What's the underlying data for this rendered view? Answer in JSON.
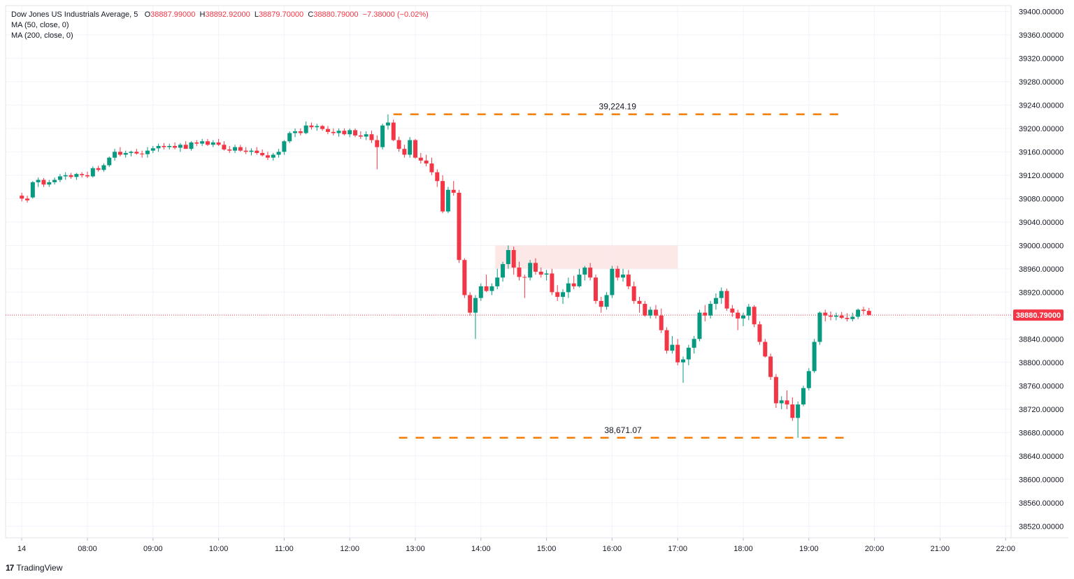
{
  "legend": {
    "instrument": "Dow Jones US Industrials Average, 5",
    "o_label": "O",
    "o_value": "38887.99000",
    "h_label": "H",
    "h_value": "38892.92000",
    "l_label": "L",
    "l_value": "38879.70000",
    "c_label": "C",
    "c_value": "38880.79000",
    "change": "−7.38000 (−0.02%)",
    "ma1": "MA (50, close, 0)",
    "ma2": "MA (200, close, 0)"
  },
  "brand": {
    "logo": "17",
    "name": "TradingView"
  },
  "colors": {
    "up": "#089981",
    "down": "#f23645",
    "level": "#f57c00",
    "zone": "#fde4e4",
    "grid": "#f0f3fa",
    "last_price": "#f23645"
  },
  "chart_data": {
    "type": "candlestick",
    "interval": "5 minutes",
    "x_axis_ticks": [
      "14",
      "08:00",
      "09:00",
      "10:00",
      "11:00",
      "12:00",
      "13:00",
      "14:00",
      "15:00",
      "16:00",
      "17:00",
      "18:00",
      "19:00",
      "20:00",
      "21:00",
      "22:00"
    ],
    "y_axis_ticks": [
      "39400.00000",
      "39360.00000",
      "39320.00000",
      "39280.00000",
      "39240.00000",
      "39200.00000",
      "39160.00000",
      "39120.00000",
      "39080.00000",
      "39040.00000",
      "39000.00000",
      "38960.00000",
      "38920.00000",
      "38880.79000",
      "38840.00000",
      "38800.00000",
      "38760.00000",
      "38720.00000",
      "38680.00000",
      "38640.00000",
      "38600.00000",
      "38560.00000",
      "38520.00000"
    ],
    "ylim": [
      38500,
      39410
    ],
    "last_price": 38880.79,
    "last_price_label": "38880.79000",
    "annotations": [
      {
        "label": "39,224.19",
        "value": 39224.19,
        "start": "12:40",
        "end": "19:30"
      },
      {
        "label": "38,671.07",
        "value": 38671.07,
        "start": "12:45",
        "end": "19:35"
      }
    ],
    "zone": {
      "start": "14:15",
      "end": "17:00",
      "low": 38960,
      "high": 39000
    },
    "candles": [
      [
        "07:00",
        39085,
        39090,
        39075,
        39080
      ],
      [
        "07:05",
        39080,
        39085,
        39073,
        39077
      ],
      [
        "07:10",
        39082,
        39110,
        39080,
        39108
      ],
      [
        "07:15",
        39108,
        39116,
        39100,
        39112
      ],
      [
        "07:20",
        39112,
        39115,
        39100,
        39104
      ],
      [
        "07:25",
        39104,
        39112,
        39100,
        39108
      ],
      [
        "07:30",
        39108,
        39116,
        39104,
        39112
      ],
      [
        "07:35",
        39112,
        39122,
        39108,
        39118
      ],
      [
        "07:40",
        39118,
        39125,
        39112,
        39120
      ],
      [
        "07:45",
        39120,
        39124,
        39114,
        39117
      ],
      [
        "07:50",
        39117,
        39124,
        39112,
        39122
      ],
      [
        "07:55",
        39122,
        39125,
        39116,
        39120
      ],
      [
        "08:00",
        39120,
        39126,
        39115,
        39118
      ],
      [
        "08:05",
        39118,
        39135,
        39116,
        39132
      ],
      [
        "08:10",
        39132,
        39136,
        39126,
        39129
      ],
      [
        "08:15",
        39129,
        39140,
        39126,
        39137
      ],
      [
        "08:20",
        39137,
        39152,
        39134,
        39150
      ],
      [
        "08:25",
        39150,
        39165,
        39145,
        39160
      ],
      [
        "08:30",
        39160,
        39168,
        39152,
        39155
      ],
      [
        "08:35",
        39155,
        39162,
        39150,
        39158
      ],
      [
        "08:40",
        39158,
        39162,
        39152,
        39160
      ],
      [
        "08:45",
        39160,
        39165,
        39155,
        39157
      ],
      [
        "08:50",
        39157,
        39162,
        39150,
        39156
      ],
      [
        "08:55",
        39156,
        39168,
        39150,
        39162
      ],
      [
        "09:00",
        39162,
        39170,
        39158,
        39166
      ],
      [
        "09:05",
        39166,
        39174,
        39160,
        39170
      ],
      [
        "09:10",
        39170,
        39175,
        39164,
        39168
      ],
      [
        "09:15",
        39168,
        39174,
        39164,
        39170
      ],
      [
        "09:20",
        39170,
        39176,
        39164,
        39167
      ],
      [
        "09:25",
        39167,
        39175,
        39160,
        39172
      ],
      [
        "09:30",
        39172,
        39178,
        39168,
        39165
      ],
      [
        "09:35",
        39165,
        39178,
        39162,
        39176
      ],
      [
        "09:40",
        39176,
        39180,
        39170,
        39174
      ],
      [
        "09:45",
        39174,
        39182,
        39170,
        39178
      ],
      [
        "09:50",
        39178,
        39182,
        39170,
        39172
      ],
      [
        "09:55",
        39172,
        39180,
        39168,
        39176
      ],
      [
        "10:00",
        39176,
        39182,
        39170,
        39172
      ],
      [
        "10:05",
        39172,
        39178,
        39162,
        39164
      ],
      [
        "10:10",
        39164,
        39170,
        39158,
        39162
      ],
      [
        "10:15",
        39162,
        39172,
        39158,
        39168
      ],
      [
        "10:20",
        39168,
        39172,
        39160,
        39162
      ],
      [
        "10:25",
        39162,
        39168,
        39156,
        39160
      ],
      [
        "10:30",
        39160,
        39166,
        39154,
        39162
      ],
      [
        "10:35",
        39162,
        39168,
        39155,
        39158
      ],
      [
        "10:40",
        39158,
        39164,
        39152,
        39154
      ],
      [
        "10:45",
        39154,
        39160,
        39146,
        39150
      ],
      [
        "10:50",
        39150,
        39158,
        39145,
        39155
      ],
      [
        "10:55",
        39155,
        39165,
        39150,
        39160
      ],
      [
        "11:00",
        39160,
        39180,
        39155,
        39178
      ],
      [
        "11:05",
        39178,
        39195,
        39175,
        39192
      ],
      [
        "11:10",
        39192,
        39200,
        39185,
        39195
      ],
      [
        "11:15",
        39195,
        39200,
        39188,
        39192
      ],
      [
        "11:20",
        39192,
        39212,
        39190,
        39205
      ],
      [
        "11:25",
        39205,
        39210,
        39198,
        39202
      ],
      [
        "11:30",
        39202,
        39208,
        39196,
        39204
      ],
      [
        "11:35",
        39204,
        39206,
        39196,
        39199
      ],
      [
        "11:40",
        39199,
        39204,
        39190,
        39194
      ],
      [
        "11:45",
        39194,
        39200,
        39188,
        39192
      ],
      [
        "11:50",
        39192,
        39200,
        39186,
        39196
      ],
      [
        "11:55",
        39196,
        39200,
        39188,
        39190
      ],
      [
        "12:00",
        39190,
        39200,
        39185,
        39197
      ],
      [
        "12:05",
        39197,
        39200,
        39185,
        39188
      ],
      [
        "12:10",
        39188,
        39195,
        39182,
        39186
      ],
      [
        "12:15",
        39186,
        39195,
        39180,
        39190
      ],
      [
        "12:20",
        39190,
        39196,
        39175,
        39180
      ],
      [
        "12:25",
        39180,
        39188,
        39130,
        39168
      ],
      [
        "12:30",
        39168,
        39208,
        39164,
        39205
      ],
      [
        "12:35",
        39205,
        39224,
        39198,
        39210
      ],
      [
        "12:40",
        39210,
        39215,
        39178,
        39180
      ],
      [
        "12:45",
        39180,
        39186,
        39160,
        39165
      ],
      [
        "12:50",
        39165,
        39172,
        39150,
        39155
      ],
      [
        "12:55",
        39155,
        39185,
        39150,
        39180
      ],
      [
        "13:00",
        39180,
        39182,
        39148,
        39150
      ],
      [
        "13:05",
        39150,
        39158,
        39140,
        39145
      ],
      [
        "13:10",
        39145,
        39155,
        39135,
        39140
      ],
      [
        "13:15",
        39140,
        39150,
        39120,
        39125
      ],
      [
        "13:20",
        39125,
        39130,
        39100,
        39110
      ],
      [
        "13:25",
        39110,
        39120,
        39055,
        39058
      ],
      [
        "13:30",
        39058,
        39100,
        39055,
        39095
      ],
      [
        "13:35",
        39095,
        39110,
        39085,
        39090
      ],
      [
        "13:40",
        39090,
        39095,
        38970,
        38975
      ],
      [
        "13:45",
        38975,
        38978,
        38910,
        38915
      ],
      [
        "13:50",
        38915,
        38920,
        38880,
        38885
      ],
      [
        "13:55",
        38885,
        38915,
        38840,
        38910
      ],
      [
        "14:00",
        38910,
        38935,
        38905,
        38930
      ],
      [
        "14:05",
        38930,
        38950,
        38920,
        38922
      ],
      [
        "14:10",
        38922,
        38935,
        38915,
        38930
      ],
      [
        "14:15",
        38930,
        38960,
        38925,
        38945
      ],
      [
        "14:20",
        38945,
        38972,
        38938,
        38968
      ],
      [
        "14:25",
        38968,
        39000,
        38960,
        38992
      ],
      [
        "14:30",
        38992,
        38998,
        38950,
        38962
      ],
      [
        "14:35",
        38962,
        38972,
        38940,
        38946
      ],
      [
        "14:40",
        38946,
        38950,
        38910,
        38945
      ],
      [
        "14:45",
        38945,
        38975,
        38940,
        38970
      ],
      [
        "14:50",
        38970,
        38978,
        38950,
        38955
      ],
      [
        "14:55",
        38955,
        38962,
        38945,
        38950
      ],
      [
        "15:00",
        38950,
        38958,
        38940,
        38952
      ],
      [
        "15:05",
        38952,
        38960,
        38915,
        38920
      ],
      [
        "15:10",
        38920,
        38932,
        38905,
        38912
      ],
      [
        "15:15",
        38912,
        38925,
        38900,
        38920
      ],
      [
        "15:20",
        38920,
        38945,
        38910,
        38935
      ],
      [
        "15:25",
        38935,
        38948,
        38925,
        38930
      ],
      [
        "15:30",
        38930,
        38960,
        38928,
        38950
      ],
      [
        "15:35",
        38950,
        38965,
        38940,
        38962
      ],
      [
        "15:40",
        38962,
        38970,
        38940,
        38945
      ],
      [
        "15:45",
        38945,
        38950,
        38900,
        38905
      ],
      [
        "15:50",
        38905,
        38912,
        38885,
        38895
      ],
      [
        "15:55",
        38895,
        38920,
        38890,
        38915
      ],
      [
        "16:00",
        38915,
        38965,
        38910,
        38960
      ],
      [
        "16:05",
        38960,
        38965,
        38940,
        38945
      ],
      [
        "16:10",
        38945,
        38960,
        38938,
        38950
      ],
      [
        "16:15",
        38950,
        38958,
        38925,
        38930
      ],
      [
        "16:20",
        38930,
        38938,
        38900,
        38905
      ],
      [
        "16:25",
        38905,
        38912,
        38885,
        38900
      ],
      [
        "16:30",
        38900,
        38905,
        38878,
        38880
      ],
      [
        "16:35",
        38880,
        38895,
        38875,
        38890
      ],
      [
        "16:40",
        38890,
        38898,
        38875,
        38880
      ],
      [
        "16:45",
        38880,
        38892,
        38850,
        38855
      ],
      [
        "16:50",
        38855,
        38860,
        38815,
        38820
      ],
      [
        "16:55",
        38820,
        38845,
        38815,
        38830
      ],
      [
        "17:00",
        38830,
        38840,
        38795,
        38800
      ],
      [
        "17:05",
        38800,
        38810,
        38765,
        38805
      ],
      [
        "17:10",
        38805,
        38830,
        38795,
        38825
      ],
      [
        "17:15",
        38825,
        38845,
        38815,
        38840
      ],
      [
        "17:20",
        38840,
        38890,
        38836,
        38885
      ],
      [
        "17:25",
        38885,
        38898,
        38870,
        38880
      ],
      [
        "17:30",
        38880,
        38905,
        38875,
        38900
      ],
      [
        "17:35",
        38900,
        38918,
        38890,
        38910
      ],
      [
        "17:40",
        38910,
        38928,
        38900,
        38922
      ],
      [
        "17:45",
        38922,
        38926,
        38888,
        38892
      ],
      [
        "17:50",
        38892,
        38898,
        38878,
        38885
      ],
      [
        "17:55",
        38885,
        38890,
        38855,
        38875
      ],
      [
        "18:00",
        38875,
        38885,
        38862,
        38880
      ],
      [
        "18:05",
        38880,
        38900,
        38872,
        38895
      ],
      [
        "18:10",
        38895,
        38898,
        38860,
        38865
      ],
      [
        "18:15",
        38865,
        38870,
        38830,
        38835
      ],
      [
        "18:20",
        38835,
        38840,
        38808,
        38810
      ],
      [
        "18:25",
        38810,
        38815,
        38770,
        38775
      ],
      [
        "18:30",
        38775,
        38780,
        38722,
        38730
      ],
      [
        "18:35",
        38730,
        38742,
        38720,
        38735
      ],
      [
        "18:40",
        38735,
        38752,
        38720,
        38728
      ],
      [
        "18:45",
        38728,
        38740,
        38700,
        38705
      ],
      [
        "18:50",
        38705,
        38733,
        38671,
        38728
      ],
      [
        "18:55",
        38728,
        38760,
        38725,
        38756
      ],
      [
        "19:00",
        38756,
        38790,
        38752,
        38785
      ],
      [
        "19:05",
        38785,
        38840,
        38782,
        38835
      ],
      [
        "19:10",
        38835,
        38887,
        38830,
        38885
      ],
      [
        "19:15",
        38885,
        38890,
        38870,
        38880
      ],
      [
        "19:20",
        38880,
        38887,
        38872,
        38878
      ],
      [
        "19:25",
        38878,
        38885,
        38872,
        38880
      ],
      [
        "19:30",
        38880,
        38886,
        38874,
        38876
      ],
      [
        "19:35",
        38876,
        38884,
        38870,
        38874
      ],
      [
        "19:40",
        38874,
        38885,
        38870,
        38878
      ],
      [
        "19:45",
        38878,
        38892,
        38874,
        38890
      ],
      [
        "19:50",
        38890,
        38895,
        38882,
        38888
      ],
      [
        "19:55",
        38888,
        38893,
        38880,
        38881
      ]
    ]
  }
}
